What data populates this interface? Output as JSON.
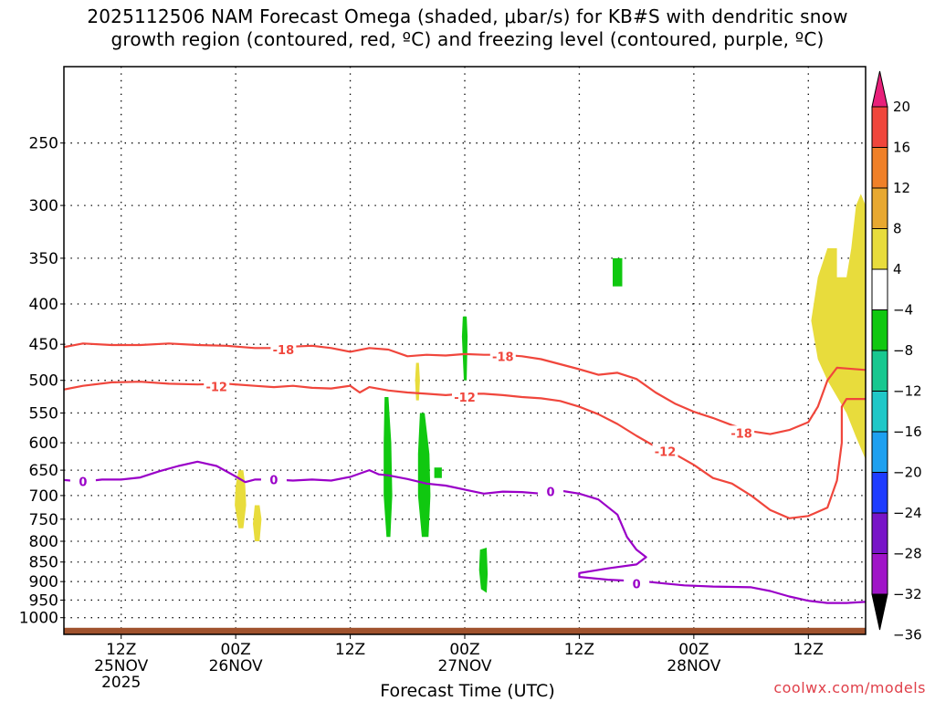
{
  "title_lines": [
    "2025112506 NAM Forecast Omega (shaded, μbar/s) for KB#S with dendritic snow",
    "growth region (contoured, red, ºC) and freezing level (contoured, purple, ºC)"
  ],
  "xlabel": "Forecast Time (UTC)",
  "credit": "coolwx.com/models",
  "chart_data": {
    "type": "contour",
    "title": "2025112506 NAM Forecast Omega (shaded, μbar/s) for KB#S with dendritic snow growth region (contoured, red, ºC) and freezing level (contoured, purple, ºC)",
    "xlabel": "Forecast Time (UTC)",
    "ylabel": "",
    "x_unit": "forecast hour from 2025-11-25 06Z",
    "xlim": [
      0,
      84
    ],
    "ylim": [
      1050,
      200
    ],
    "y_scale": "log",
    "grid": true,
    "legend": "right colorbar",
    "y_ticks": [
      250,
      300,
      350,
      400,
      450,
      500,
      550,
      600,
      650,
      700,
      750,
      800,
      850,
      900,
      950,
      1000
    ],
    "x_ticks": [
      {
        "hour": 6,
        "labels": [
          "12Z",
          "25NOV",
          "2025"
        ]
      },
      {
        "hour": 18,
        "labels": [
          "00Z",
          "26NOV"
        ]
      },
      {
        "hour": 30,
        "labels": [
          "12Z"
        ]
      },
      {
        "hour": 42,
        "labels": [
          "00Z",
          "27NOV"
        ]
      },
      {
        "hour": 54,
        "labels": [
          "12Z"
        ]
      },
      {
        "hour": 66,
        "labels": [
          "00Z",
          "28NOV"
        ]
      },
      {
        "hour": 78,
        "labels": [
          "12Z"
        ]
      }
    ],
    "colorbar": {
      "levels": [
        20,
        16,
        12,
        8,
        4,
        -4,
        -8,
        -12,
        -16,
        -20,
        -24,
        -28,
        -32,
        -36
      ],
      "colors": [
        "#e8207a",
        "#f0463c",
        "#f08028",
        "#e8a830",
        "#e8dc3c",
        "#ffffff",
        "#10c810",
        "#18c890",
        "#20c8c8",
        "#1ea0f0",
        "#1e3cff",
        "#7814c8",
        "#a014c8",
        "#a8a8a8"
      ]
    },
    "contours": [
      {
        "variable": "temperature",
        "level": -18,
        "label": "-18",
        "color": "#f0463c",
        "points": [
          [
            -0.5,
            455
          ],
          [
            2,
            449
          ],
          [
            5,
            451
          ],
          [
            8,
            451
          ],
          [
            11,
            449
          ],
          [
            14,
            451
          ],
          [
            17,
            452
          ],
          [
            20,
            455
          ],
          [
            22,
            455
          ],
          [
            24,
            453
          ],
          [
            26,
            452
          ],
          [
            28,
            455
          ],
          [
            30,
            460
          ],
          [
            32,
            455
          ],
          [
            34,
            457
          ],
          [
            36,
            466
          ],
          [
            38,
            464
          ],
          [
            40,
            465
          ],
          [
            42,
            463
          ],
          [
            44,
            464
          ],
          [
            46,
            464
          ],
          [
            48,
            466
          ],
          [
            50,
            470
          ],
          [
            52,
            477
          ],
          [
            54,
            484
          ],
          [
            56,
            492
          ],
          [
            58,
            489
          ],
          [
            60,
            498
          ],
          [
            62,
            518
          ],
          [
            64,
            535
          ],
          [
            66,
            548
          ],
          [
            68,
            558
          ],
          [
            70,
            570
          ],
          [
            72,
            580
          ],
          [
            74,
            585
          ],
          [
            76,
            578
          ],
          [
            78,
            565
          ],
          [
            79,
            540
          ],
          [
            80,
            500
          ],
          [
            81,
            482
          ],
          [
            82,
            483
          ],
          [
            84,
            485
          ]
        ],
        "labels": [
          [
            23,
            457
          ],
          [
            46,
            466
          ],
          [
            71,
            583
          ]
        ]
      },
      {
        "variable": "temperature",
        "level": -12,
        "label": "-12",
        "color": "#f0463c",
        "points": [
          [
            -0.5,
            515
          ],
          [
            2,
            508
          ],
          [
            5,
            503
          ],
          [
            8,
            502
          ],
          [
            11,
            505
          ],
          [
            14,
            506
          ],
          [
            17,
            505
          ],
          [
            20,
            508
          ],
          [
            22,
            510
          ],
          [
            24,
            508
          ],
          [
            26,
            511
          ],
          [
            28,
            512
          ],
          [
            30,
            508
          ],
          [
            31,
            518
          ],
          [
            32,
            510
          ],
          [
            34,
            515
          ],
          [
            36,
            518
          ],
          [
            38,
            520
          ],
          [
            40,
            522
          ],
          [
            42,
            520
          ],
          [
            44,
            520
          ],
          [
            46,
            522
          ],
          [
            48,
            525
          ],
          [
            50,
            527
          ],
          [
            52,
            531
          ],
          [
            54,
            540
          ],
          [
            56,
            552
          ],
          [
            58,
            568
          ],
          [
            60,
            588
          ],
          [
            62,
            607
          ],
          [
            64,
            620
          ],
          [
            66,
            640
          ],
          [
            68,
            665
          ],
          [
            70,
            676
          ],
          [
            72,
            700
          ],
          [
            74,
            730
          ],
          [
            76,
            748
          ],
          [
            78,
            743
          ],
          [
            80,
            725
          ],
          [
            81,
            670
          ],
          [
            81.5,
            600
          ],
          [
            81.5,
            540
          ],
          [
            82,
            528
          ],
          [
            84,
            528
          ]
        ],
        "labels": [
          [
            16,
            509
          ],
          [
            42,
            525
          ],
          [
            63,
            615
          ]
        ]
      },
      {
        "variable": "temperature",
        "level": 0,
        "label": "0",
        "color": "#9a00c8",
        "points": [
          [
            -0.5,
            668
          ],
          [
            2,
            672
          ],
          [
            4,
            668
          ],
          [
            6,
            668
          ],
          [
            8,
            664
          ],
          [
            10,
            652
          ],
          [
            12,
            642
          ],
          [
            14,
            634
          ],
          [
            16,
            642
          ],
          [
            18,
            662
          ],
          [
            19,
            673
          ],
          [
            20,
            668
          ],
          [
            22,
            668
          ],
          [
            24,
            670
          ],
          [
            26,
            668
          ],
          [
            28,
            670
          ],
          [
            30,
            663
          ],
          [
            32,
            650
          ],
          [
            33,
            658
          ],
          [
            34,
            660
          ],
          [
            36,
            667
          ],
          [
            38,
            676
          ],
          [
            40,
            680
          ],
          [
            42,
            688
          ],
          [
            44,
            696
          ],
          [
            46,
            692
          ],
          [
            48,
            693
          ],
          [
            50,
            696
          ],
          [
            52,
            690
          ],
          [
            54,
            696
          ],
          [
            56,
            708
          ],
          [
            58,
            740
          ],
          [
            59,
            790
          ],
          [
            60,
            820
          ],
          [
            61,
            838
          ],
          [
            60,
            856
          ],
          [
            57,
            866
          ],
          [
            54,
            878
          ],
          [
            54,
            888
          ],
          [
            57,
            895
          ],
          [
            61,
            900
          ],
          [
            63,
            905
          ],
          [
            65,
            910
          ],
          [
            68,
            913
          ],
          [
            72,
            915
          ],
          [
            74,
            925
          ],
          [
            76,
            940
          ],
          [
            78,
            952
          ],
          [
            80,
            958
          ],
          [
            82,
            958
          ],
          [
            84,
            955
          ]
        ],
        "labels": [
          [
            2,
            672
          ],
          [
            22,
            668
          ],
          [
            51,
            692
          ],
          [
            60,
            906
          ]
        ]
      }
    ],
    "shaded_regions": [
      {
        "value_range": [
          4,
          8
        ],
        "color": "#e8dc3c",
        "points": [
          [
            78.3,
            420
          ],
          [
            79,
            370
          ],
          [
            80,
            340
          ],
          [
            81,
            340
          ],
          [
            81,
            370
          ],
          [
            82,
            370
          ],
          [
            82.5,
            340
          ],
          [
            83,
            300
          ],
          [
            83.5,
            290
          ],
          [
            84,
            300
          ],
          [
            84.5,
            360
          ],
          [
            84.8,
            400
          ],
          [
            84.3,
            460
          ],
          [
            84.8,
            520
          ],
          [
            85,
            560
          ],
          [
            84,
            630
          ],
          [
            83,
            590
          ],
          [
            82,
            550
          ],
          [
            80,
            500
          ],
          [
            79,
            470
          ]
        ]
      },
      {
        "value_range": [
          4,
          8
        ],
        "color": "#e8dc3c",
        "points": [
          [
            18.3,
            650
          ],
          [
            18.8,
            650
          ],
          [
            19,
            680
          ],
          [
            19.1,
            720
          ],
          [
            18.8,
            770
          ],
          [
            18.3,
            770
          ],
          [
            17.9,
            720
          ],
          [
            18,
            680
          ]
        ]
      },
      {
        "value_range": [
          4,
          8
        ],
        "color": "#e8dc3c",
        "points": [
          [
            20,
            720
          ],
          [
            20.5,
            720
          ],
          [
            20.7,
            750
          ],
          [
            20.5,
            800
          ],
          [
            20,
            800
          ],
          [
            19.8,
            760
          ]
        ]
      },
      {
        "value_range": [
          4,
          8
        ],
        "color": "#e8dc3c",
        "points": [
          [
            36.9,
            475
          ],
          [
            37.2,
            475
          ],
          [
            37.3,
            500
          ],
          [
            37.2,
            530
          ],
          [
            36.9,
            530
          ],
          [
            36.8,
            500
          ]
        ]
      },
      {
        "value_range": [
          -8,
          -4
        ],
        "color": "#10c810",
        "points": [
          [
            33.6,
            525
          ],
          [
            34,
            525
          ],
          [
            34.3,
            600
          ],
          [
            34.4,
            700
          ],
          [
            34.2,
            790
          ],
          [
            33.8,
            790
          ],
          [
            33.5,
            700
          ],
          [
            33.5,
            600
          ]
        ]
      },
      {
        "value_range": [
          -8,
          -4
        ],
        "color": "#10c810",
        "points": [
          [
            37.3,
            550
          ],
          [
            37.8,
            550
          ],
          [
            38.3,
            620
          ],
          [
            38.4,
            700
          ],
          [
            38.2,
            790
          ],
          [
            37.5,
            790
          ],
          [
            37.1,
            700
          ],
          [
            37.1,
            620
          ]
        ]
      },
      {
        "value_range": [
          -8,
          -4
        ],
        "color": "#10c810",
        "points": [
          [
            41.8,
            415
          ],
          [
            42.2,
            415
          ],
          [
            42.3,
            440
          ],
          [
            42.2,
            500
          ],
          [
            41.9,
            500
          ],
          [
            41.7,
            440
          ]
        ]
      },
      {
        "value_range": [
          -8,
          -4
        ],
        "color": "#10c810",
        "points": [
          [
            38.8,
            645
          ],
          [
            39.6,
            645
          ],
          [
            39.6,
            665
          ],
          [
            38.8,
            665
          ]
        ]
      },
      {
        "value_range": [
          -8,
          -4
        ],
        "color": "#10c810",
        "points": [
          [
            43.6,
            820
          ],
          [
            44.3,
            815
          ],
          [
            44.4,
            880
          ],
          [
            44.3,
            930
          ],
          [
            43.7,
            920
          ],
          [
            43.5,
            870
          ]
        ]
      },
      {
        "value_range": [
          -8,
          -4
        ],
        "color": "#10c810",
        "points": [
          [
            57.5,
            350
          ],
          [
            58.5,
            350
          ],
          [
            58.5,
            380
          ],
          [
            57.5,
            380
          ]
        ]
      }
    ],
    "terrain_top_hpa": 1030
  }
}
